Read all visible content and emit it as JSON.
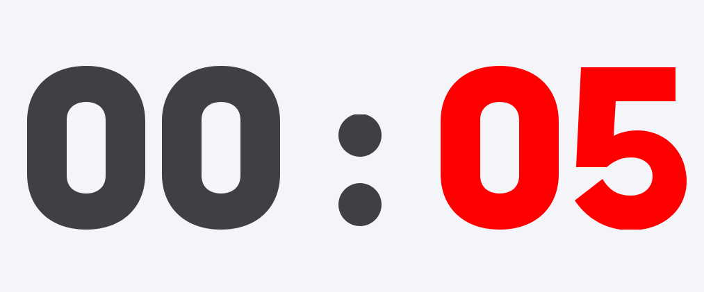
{
  "timer": {
    "display": "00 : 05",
    "minutes": "00",
    "separator": ":",
    "seconds": "05",
    "colors": {
      "background": "#f4f5f9",
      "minutes": "#3f4044",
      "separator": "#3f4044",
      "seconds": "#ff0000"
    }
  }
}
